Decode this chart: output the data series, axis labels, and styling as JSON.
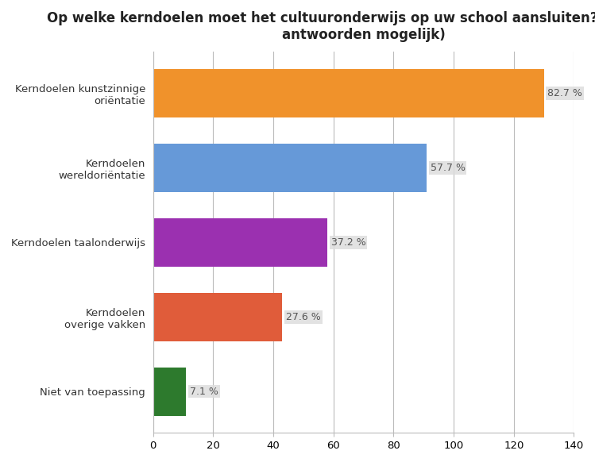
{
  "title": "Op welke kerndoelen moet het cultuuronderwijs op uw school aansluiten? (meerdere\nantwoorden mogelijk)",
  "categories": [
    "Niet van toepassing",
    "Kerndoelen\noverige vakken",
    "Kerndoelen taalonderwijs",
    "Kerndoelen\nwereldoriëntatie",
    "Kerndoelen kunstzinnige\noriëntatie"
  ],
  "values": [
    11.0,
    43.0,
    58.0,
    91.0,
    130.0
  ],
  "labels": [
    "7.1 %",
    "27.6 %",
    "37.2 %",
    "57.7 %",
    "82.7 %"
  ],
  "colors": [
    "#2d7a2d",
    "#e05c3a",
    "#9b30b0",
    "#6699d8",
    "#f0922b"
  ],
  "xlim": [
    0,
    140
  ],
  "xticks": [
    0,
    20,
    40,
    60,
    80,
    100,
    120,
    140
  ],
  "title_fontsize": 12,
  "label_fontsize": 9,
  "tick_fontsize": 9.5,
  "bar_height": 0.65,
  "background_color": "#ffffff",
  "grid_color": "#bbbbbb",
  "label_bg_color": "#dddddd"
}
